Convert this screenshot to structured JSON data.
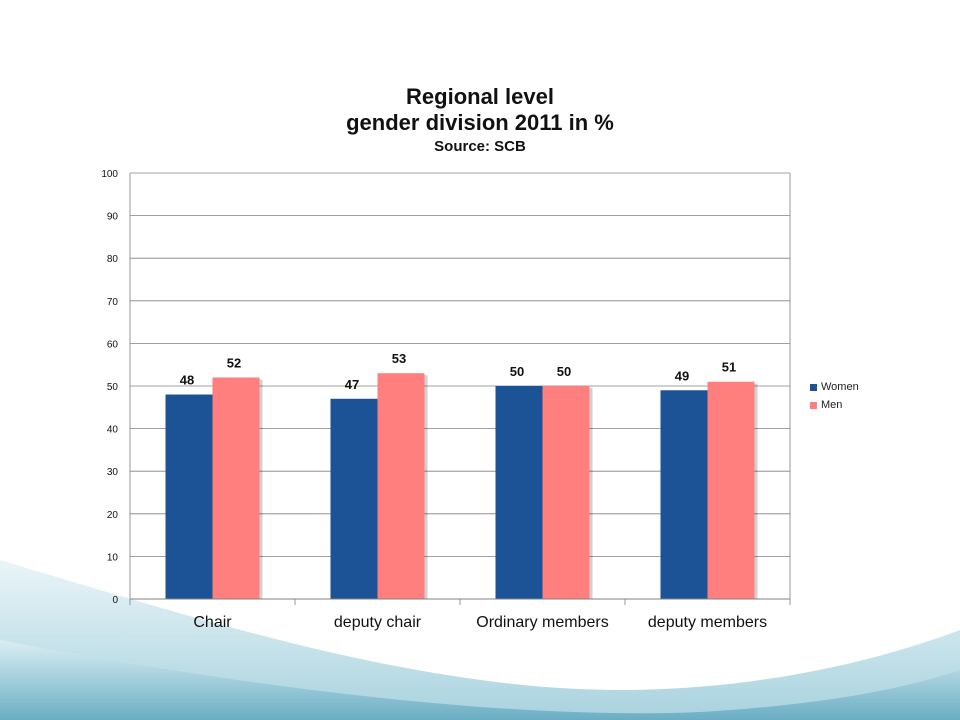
{
  "chart_data": {
    "type": "bar",
    "title": [
      "Regional level",
      "gender division 2011 in %",
      "Source: SCB"
    ],
    "categories": [
      "Chair",
      "deputy chair",
      "Ordinary members",
      "deputy members"
    ],
    "series": [
      {
        "name": "Women",
        "values": [
          48,
          47,
          50,
          49
        ],
        "color": "#1c5296"
      },
      {
        "name": "Men",
        "values": [
          52,
          53,
          50,
          51
        ],
        "color": "#ff7f7f"
      }
    ],
    "ylim": [
      0,
      100
    ],
    "yticks": [
      0,
      10,
      20,
      30,
      40,
      50,
      60,
      70,
      80,
      90,
      100
    ],
    "grid": true,
    "legend_position": "right"
  },
  "theme": {
    "wave_color": "#7fb8c8",
    "grid_color": "#808080",
    "axis_text_color": "#111111"
  }
}
